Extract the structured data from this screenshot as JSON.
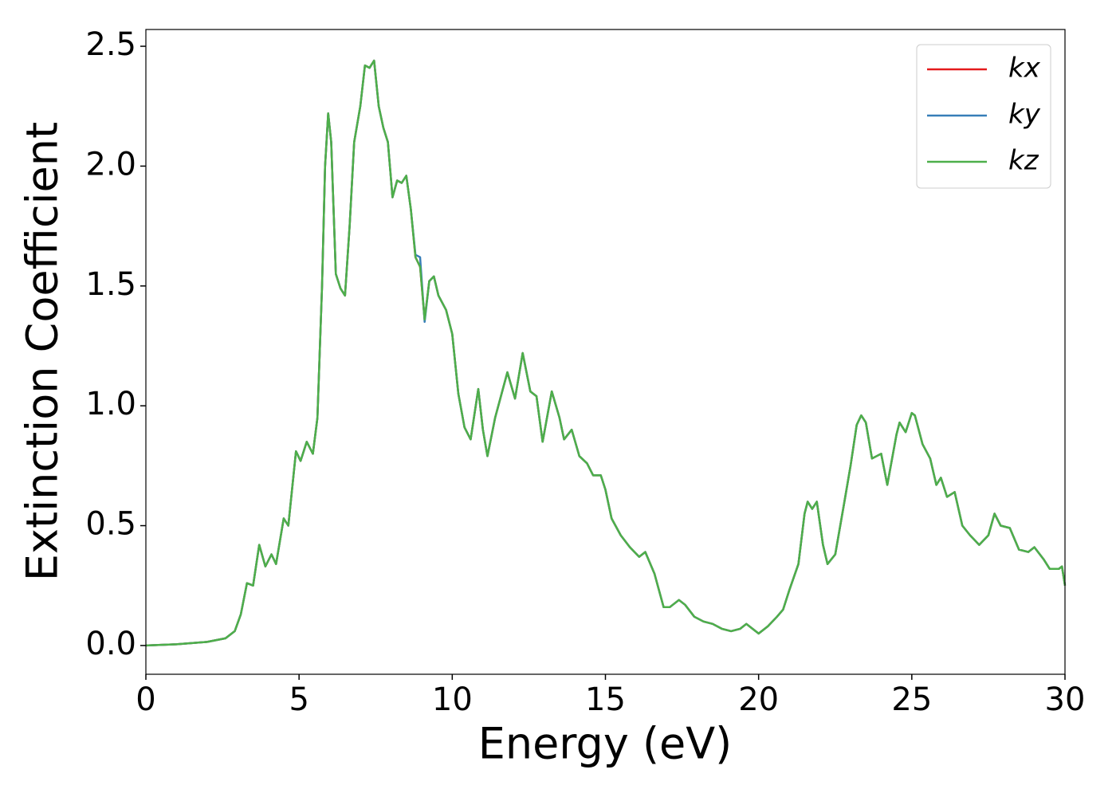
{
  "chart_data": {
    "type": "line",
    "x_label": "Energy (eV)",
    "y_label": "Extinction Coefficient",
    "x": [
      0,
      1,
      2,
      2.6,
      2.9,
      3.1,
      3.3,
      3.5,
      3.7,
      3.9,
      4.1,
      4.25,
      4.5,
      4.65,
      4.9,
      5.05,
      5.25,
      5.45,
      5.6,
      5.75,
      5.85,
      5.95,
      6.05,
      6.2,
      6.35,
      6.5,
      6.65,
      6.8,
      7.0,
      7.15,
      7.3,
      7.45,
      7.6,
      7.75,
      7.9,
      8.05,
      8.2,
      8.35,
      8.5,
      8.65,
      8.8,
      8.95,
      9.1,
      9.25,
      9.4,
      9.55,
      9.8,
      10.0,
      10.2,
      10.4,
      10.6,
      10.85,
      11.0,
      11.15,
      11.4,
      11.8,
      12.05,
      12.3,
      12.55,
      12.75,
      12.95,
      13.25,
      13.5,
      13.65,
      13.9,
      14.15,
      14.4,
      14.6,
      14.85,
      15.0,
      15.2,
      15.5,
      15.8,
      16.1,
      16.3,
      16.6,
      16.9,
      17.1,
      17.4,
      17.6,
      17.9,
      18.2,
      18.5,
      18.8,
      19.1,
      19.4,
      19.6,
      19.8,
      20.0,
      20.3,
      20.6,
      20.8,
      21.0,
      21.3,
      21.5,
      21.6,
      21.75,
      21.9,
      22.1,
      22.25,
      22.5,
      22.8,
      23.0,
      23.2,
      23.35,
      23.5,
      23.7,
      24.0,
      24.2,
      24.5,
      24.6,
      24.8,
      25.0,
      25.1,
      25.35,
      25.6,
      25.8,
      25.95,
      26.15,
      26.4,
      26.65,
      26.9,
      27.2,
      27.5,
      27.7,
      27.9,
      28.2,
      28.5,
      28.8,
      29.0,
      29.3,
      29.5,
      29.8,
      29.9,
      30.0
    ],
    "series": [
      {
        "name": "kx",
        "color": "#e41a1c",
        "values": [
          0,
          0.005,
          0.015,
          0.03,
          0.06,
          0.13,
          0.26,
          0.25,
          0.42,
          0.33,
          0.38,
          0.34,
          0.53,
          0.5,
          0.81,
          0.77,
          0.85,
          0.8,
          0.95,
          1.5,
          2.0,
          2.22,
          2.1,
          1.55,
          1.49,
          1.46,
          1.75,
          2.1,
          2.25,
          2.42,
          2.41,
          2.44,
          2.25,
          2.16,
          2.1,
          1.87,
          1.94,
          1.93,
          1.96,
          1.82,
          1.62,
          1.58,
          1.36,
          1.52,
          1.54,
          1.46,
          1.4,
          1.3,
          1.05,
          0.91,
          0.86,
          1.07,
          0.9,
          0.79,
          0.95,
          1.14,
          1.03,
          1.22,
          1.06,
          1.04,
          0.85,
          1.06,
          0.95,
          0.86,
          0.9,
          0.79,
          0.76,
          0.71,
          0.71,
          0.65,
          0.53,
          0.46,
          0.41,
          0.37,
          0.39,
          0.3,
          0.16,
          0.16,
          0.19,
          0.17,
          0.12,
          0.1,
          0.09,
          0.07,
          0.06,
          0.07,
          0.09,
          0.07,
          0.05,
          0.08,
          0.12,
          0.15,
          0.23,
          0.34,
          0.55,
          0.6,
          0.57,
          0.6,
          0.42,
          0.34,
          0.38,
          0.6,
          0.75,
          0.92,
          0.96,
          0.93,
          0.78,
          0.8,
          0.67,
          0.88,
          0.93,
          0.89,
          0.97,
          0.96,
          0.84,
          0.78,
          0.67,
          0.7,
          0.62,
          0.64,
          0.5,
          0.46,
          0.42,
          0.46,
          0.55,
          0.5,
          0.49,
          0.4,
          0.39,
          0.41,
          0.36,
          0.32,
          0.32,
          0.33,
          0.25
        ]
      },
      {
        "name": "ky",
        "color": "#377eb8",
        "values": [
          0,
          0.005,
          0.015,
          0.03,
          0.06,
          0.13,
          0.26,
          0.25,
          0.42,
          0.33,
          0.38,
          0.34,
          0.53,
          0.5,
          0.81,
          0.77,
          0.85,
          0.8,
          0.95,
          1.5,
          2.0,
          2.22,
          2.1,
          1.55,
          1.49,
          1.46,
          1.75,
          2.1,
          2.25,
          2.42,
          2.41,
          2.44,
          2.25,
          2.16,
          2.1,
          1.87,
          1.94,
          1.93,
          1.96,
          1.82,
          1.63,
          1.62,
          1.35,
          1.52,
          1.54,
          1.46,
          1.4,
          1.3,
          1.05,
          0.91,
          0.86,
          1.07,
          0.9,
          0.79,
          0.95,
          1.14,
          1.03,
          1.22,
          1.06,
          1.04,
          0.85,
          1.06,
          0.95,
          0.86,
          0.9,
          0.79,
          0.76,
          0.71,
          0.71,
          0.65,
          0.53,
          0.46,
          0.41,
          0.37,
          0.39,
          0.3,
          0.16,
          0.16,
          0.19,
          0.17,
          0.12,
          0.1,
          0.09,
          0.07,
          0.06,
          0.07,
          0.09,
          0.07,
          0.05,
          0.08,
          0.12,
          0.15,
          0.23,
          0.34,
          0.55,
          0.6,
          0.57,
          0.6,
          0.42,
          0.34,
          0.38,
          0.6,
          0.75,
          0.92,
          0.96,
          0.93,
          0.78,
          0.8,
          0.67,
          0.88,
          0.93,
          0.89,
          0.97,
          0.96,
          0.84,
          0.78,
          0.67,
          0.7,
          0.62,
          0.64,
          0.5,
          0.46,
          0.42,
          0.46,
          0.55,
          0.5,
          0.49,
          0.4,
          0.39,
          0.41,
          0.36,
          0.32,
          0.32,
          0.33,
          0.25
        ]
      },
      {
        "name": "kz",
        "color": "#4daf4a",
        "values": [
          0,
          0.005,
          0.015,
          0.03,
          0.06,
          0.13,
          0.26,
          0.25,
          0.42,
          0.33,
          0.38,
          0.34,
          0.53,
          0.5,
          0.81,
          0.77,
          0.85,
          0.8,
          0.95,
          1.5,
          2.0,
          2.22,
          2.1,
          1.55,
          1.49,
          1.46,
          1.75,
          2.1,
          2.25,
          2.42,
          2.41,
          2.44,
          2.25,
          2.16,
          2.1,
          1.87,
          1.94,
          1.93,
          1.96,
          1.82,
          1.62,
          1.58,
          1.36,
          1.52,
          1.54,
          1.46,
          1.4,
          1.3,
          1.05,
          0.91,
          0.86,
          1.07,
          0.9,
          0.79,
          0.95,
          1.14,
          1.03,
          1.22,
          1.06,
          1.04,
          0.85,
          1.06,
          0.95,
          0.86,
          0.9,
          0.79,
          0.76,
          0.71,
          0.71,
          0.65,
          0.53,
          0.46,
          0.41,
          0.37,
          0.39,
          0.3,
          0.16,
          0.16,
          0.19,
          0.17,
          0.12,
          0.1,
          0.09,
          0.07,
          0.06,
          0.07,
          0.09,
          0.07,
          0.05,
          0.08,
          0.12,
          0.15,
          0.23,
          0.34,
          0.55,
          0.6,
          0.57,
          0.6,
          0.42,
          0.34,
          0.38,
          0.6,
          0.75,
          0.92,
          0.96,
          0.93,
          0.78,
          0.8,
          0.67,
          0.88,
          0.93,
          0.89,
          0.97,
          0.96,
          0.84,
          0.78,
          0.67,
          0.7,
          0.62,
          0.64,
          0.5,
          0.46,
          0.42,
          0.46,
          0.55,
          0.5,
          0.49,
          0.4,
          0.39,
          0.41,
          0.36,
          0.32,
          0.32,
          0.33,
          0.25
        ]
      }
    ],
    "xlim": [
      0,
      30
    ],
    "xticks": [
      0,
      5,
      10,
      15,
      20,
      25,
      30
    ],
    "ylim": [
      -0.12,
      2.57
    ],
    "yticks": [
      {
        "value": 0,
        "label": "0.0"
      },
      0.5,
      {
        "value": 1,
        "label": "1.0"
      },
      1.5,
      {
        "value": 2,
        "label": "2.0"
      },
      2.5
    ],
    "legend": "upper right",
    "grid": false
  }
}
